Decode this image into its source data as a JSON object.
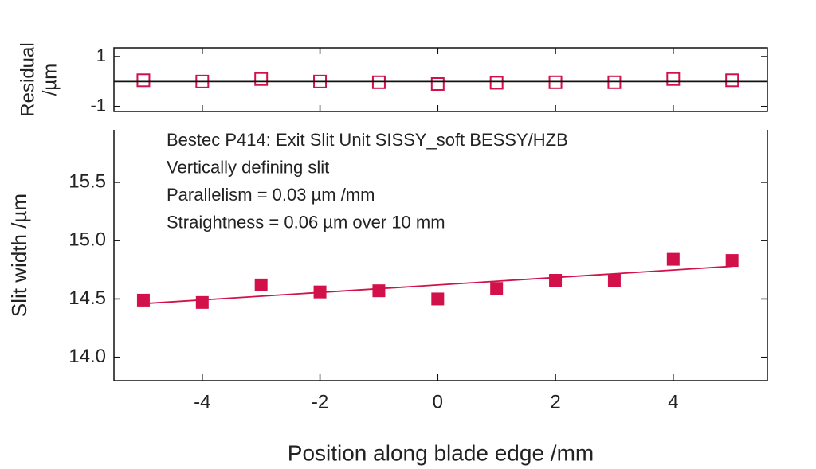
{
  "chart_data": [
    {
      "type": "scatter",
      "ylabel": [
        "Residual",
        "/µm"
      ],
      "xlim": [
        -5.5,
        5.6
      ],
      "xticks": [
        -4,
        -2,
        0,
        2,
        4
      ],
      "ylim": [
        -1.2,
        1.35
      ],
      "yticks": [
        -1,
        1
      ],
      "series": [
        {
          "marker": "open-square",
          "color": "#d2104a",
          "x": [
            -5,
            -4,
            -3,
            -2,
            -1,
            0,
            1,
            2,
            3,
            4,
            5
          ],
          "values": [
            0.05,
            0,
            0.1,
            0,
            -0.03,
            -0.1,
            -0.05,
            -0.03,
            -0.03,
            0.1,
            0.05
          ]
        },
        {
          "marker": "line",
          "color": "#111111",
          "x": [
            -5.5,
            5.6
          ],
          "values": [
            0,
            0
          ]
        }
      ]
    },
    {
      "type": "scatter",
      "xlabel": "Position along blade edge /mm",
      "ylabel": "Slit width /µm",
      "annotations": [
        "Bestec P414: Exit Slit Unit SISSY_soft BESSY/HZB",
        "Vertically defining slit",
        "Parallelism = 0.03 µm /mm",
        "Straightness = 0.06 µm over 10 mm"
      ],
      "xlim": [
        -5.5,
        5.6
      ],
      "xticks": [
        -4,
        -2,
        0,
        2,
        4
      ],
      "ylim": [
        13.8,
        15.95
      ],
      "yticks": [
        {
          "value": 14,
          "label": "14.0"
        },
        14.5,
        {
          "value": 15,
          "label": "15.0"
        },
        15.5
      ],
      "series": [
        {
          "marker": "filled-square",
          "color": "#d2104a",
          "x": [
            -5,
            -4,
            -3,
            -2,
            -1,
            0,
            1,
            2,
            3,
            4,
            5
          ],
          "values": [
            14.49,
            14.47,
            14.62,
            14.56,
            14.57,
            14.5,
            14.59,
            14.66,
            14.66,
            14.84,
            14.83
          ]
        },
        {
          "marker": "line",
          "color": "#d2104a",
          "x": [
            -5,
            5
          ],
          "values": [
            14.46,
            14.78
          ]
        }
      ]
    }
  ]
}
